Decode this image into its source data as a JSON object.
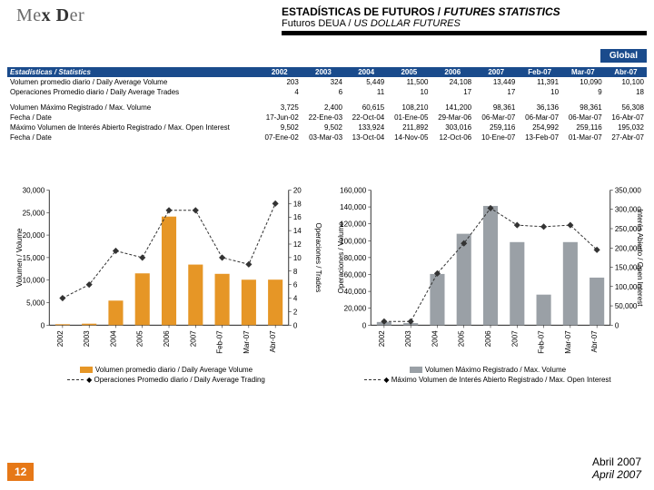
{
  "logo_text": "Mex Der",
  "header": {
    "title_a": "ESTADÍSTICAS DE FUTUROS / ",
    "title_b": "FUTURES STATISTICS",
    "sub_a": "Futuros DEUA / ",
    "sub_b": "US DOLLAR FUTURES"
  },
  "global": "Global",
  "table": {
    "head": [
      "Estadísticas / Statistics",
      "2002",
      "2003",
      "2004",
      "2005",
      "2006",
      "2007",
      "Feb-07",
      "Mar-07",
      "Abr-07"
    ],
    "rows": [
      [
        "Volumen promedio diario / Daily Average Volume",
        "203",
        "324",
        "5,449",
        "11,500",
        "24,108",
        "13,449",
        "11,391",
        "10,090",
        "10,100"
      ],
      [
        "Operaciones Promedio diario / Daily Average Trades",
        "4",
        "6",
        "11",
        "10",
        "17",
        "17",
        "10",
        "9",
        "18"
      ],
      [
        "",
        "",
        "",
        "",
        "",
        "",
        "",
        "",
        "",
        ""
      ],
      [
        "Volumen Máximo Registrado / Max. Volume",
        "3,725",
        "2,400",
        "60,615",
        "108,210",
        "141,200",
        "98,361",
        "36,136",
        "98,361",
        "56,308"
      ],
      [
        "Fecha / Date",
        "17-Jun-02",
        "22-Ene-03",
        "22-Oct-04",
        "01-Ene-05",
        "29-Mar-06",
        "06-Mar-07",
        "06-Mar-07",
        "06-Mar-07",
        "16-Abr-07"
      ],
      [
        "Máximo Volumen de Interés Abierto Registrado / Max. Open Interest",
        "9,502",
        "9,502",
        "133,924",
        "211,892",
        "303,016",
        "259,116",
        "254,992",
        "259,116",
        "195,032"
      ],
      [
        "Fecha / Date",
        "07-Ene-02",
        "03-Mar-03",
        "13-Oct-04",
        "14-Nov-05",
        "12-Oct-06",
        "10-Ene-07",
        "13-Feb-07",
        "01-Mar-07",
        "27-Abr-07"
      ]
    ]
  },
  "chart1": {
    "type": "bar+line-dualaxis",
    "categories": [
      "2002",
      "2003",
      "2004",
      "2005",
      "2006",
      "2007",
      "Feb-07",
      "Mar-07",
      "Abr-07"
    ],
    "bars": [
      203,
      324,
      5449,
      11500,
      24108,
      13449,
      11391,
      10090,
      10100
    ],
    "line": [
      4,
      6,
      11,
      10,
      17,
      17,
      10,
      9,
      18
    ],
    "ylim_left": [
      0,
      30000
    ],
    "ytick_left": 5000,
    "ylim_right": [
      0,
      20
    ],
    "ytick_right": 2,
    "bar_color": "#e69626",
    "line_color": "#333333",
    "grid_color": "#d0d0d0",
    "bg": "#ffffff",
    "label_fontsize": 8,
    "ylabel_left": "Volumen / Volume",
    "ylabel_right": "Operaciones / Trades",
    "legend_bar": "Volumen promedio diario / Daily Average Volume",
    "legend_line": "Operaciones Promedio diario / Daily Average Trading"
  },
  "chart2": {
    "type": "bar+line-dualaxis",
    "categories": [
      "2002",
      "2003",
      "2004",
      "2005",
      "2006",
      "2007",
      "Feb-07",
      "Mar-07",
      "Abr-07"
    ],
    "bars": [
      3725,
      2400,
      60615,
      108210,
      141200,
      98361,
      36136,
      98361,
      56308
    ],
    "line": [
      9502,
      9502,
      133924,
      211892,
      303016,
      259116,
      254992,
      259116,
      195032
    ],
    "ylim_left": [
      0,
      160000
    ],
    "ytick_left": 20000,
    "ylim_right": [
      0,
      350000
    ],
    "ytick_right": 50000,
    "bar_color": "#9aa0a6",
    "line_color": "#333333",
    "grid_color": "#d0d0d0",
    "bg": "#ffffff",
    "label_fontsize": 8,
    "ylabel_left": "Operaciones / Volume",
    "ylabel_right": "Interés Abierto / Open Interest",
    "legend_bar": "Volumen Máximo Registrado / Max. Volume",
    "legend_line": "Máximo Volumen de Interés Abierto Registrado / Max. Open Interest"
  },
  "footer": {
    "month": "Abril 2007",
    "month_en": "April 2007"
  },
  "page_num": "12",
  "colors": {
    "brand_blue": "#1a4b8c",
    "orange": "#e67817"
  }
}
